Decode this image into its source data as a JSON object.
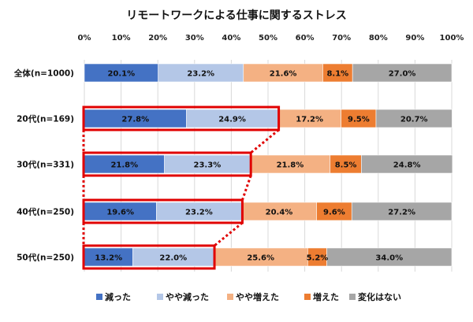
{
  "chart_data": {
    "type": "bar",
    "orientation": "horizontal",
    "stacked": true,
    "percent": true,
    "title": "リモートワークによる仕事に関するストレス",
    "x_ticks": [
      "0%",
      "10%",
      "20%",
      "30%",
      "40%",
      "50%",
      "60%",
      "70%",
      "80%",
      "90%",
      "100%"
    ],
    "xlim": [
      0,
      100
    ],
    "grid": true,
    "legend_position": "bottom",
    "categories": [
      "全体(n=1000)",
      "20代(n=169)",
      "30代(n=331)",
      "40代(n=250)",
      "50代(n=250)"
    ],
    "series": [
      {
        "name": "減った",
        "color": "#4472c4",
        "values": [
          20.1,
          27.8,
          21.8,
          19.6,
          13.2
        ],
        "labels": [
          "20.1%",
          "27.8%",
          "21.8%",
          "19.6%",
          "13.2%"
        ]
      },
      {
        "name": "やや減った",
        "color": "#b4c7e7",
        "values": [
          23.2,
          24.9,
          23.3,
          23.2,
          22.0
        ],
        "labels": [
          "23.2%",
          "24.9%",
          "23.3%",
          "23.2%",
          "22.0%"
        ]
      },
      {
        "name": "やや増えた",
        "color": "#f4b183",
        "values": [
          21.6,
          17.2,
          21.8,
          20.4,
          25.6
        ],
        "labels": [
          "21.6%",
          "17.2%",
          "21.8%",
          "20.4%",
          "25.6%"
        ]
      },
      {
        "name": "増えた",
        "color": "#ed7d31",
        "values": [
          8.1,
          9.5,
          8.5,
          9.6,
          5.2
        ],
        "labels": [
          "8.1%",
          "9.5%",
          "8.5%",
          "9.6%",
          "5.2%"
        ]
      },
      {
        "name": "変化はない",
        "color": "#a6a6a6",
        "values": [
          27.0,
          20.7,
          24.8,
          27.2,
          34.0
        ],
        "labels": [
          "27.0%",
          "20.7%",
          "24.8%",
          "27.2%",
          "34.0%"
        ]
      }
    ],
    "highlight": {
      "color": "#e00000",
      "categories": [
        "20代(n=169)",
        "30代(n=331)",
        "40代(n=250)",
        "50代(n=250)"
      ],
      "series": [
        "減った",
        "やや減った"
      ]
    }
  }
}
